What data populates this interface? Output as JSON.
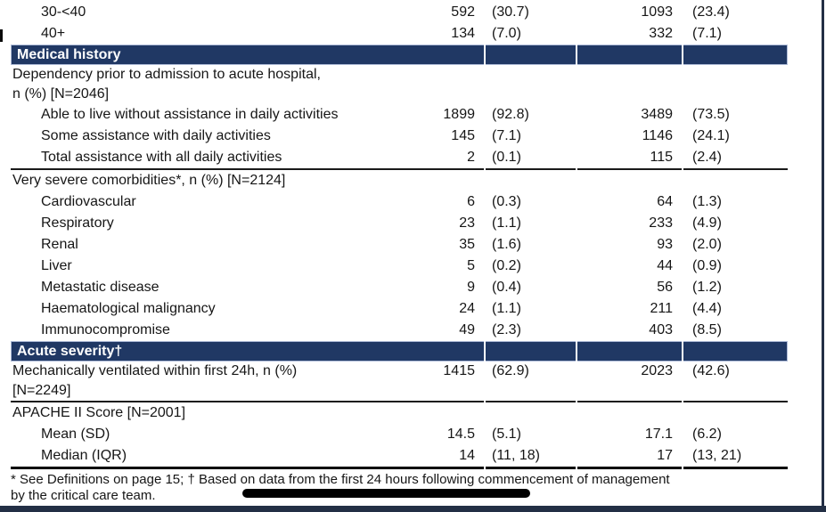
{
  "rows": [
    {
      "type": "item",
      "label": "30-<40",
      "n1": "592",
      "p1": "(30.7)",
      "n2": "1093",
      "p2": "(23.4)"
    },
    {
      "type": "item",
      "label": "40+",
      "n1": "134",
      "p1": "(7.0)",
      "n2": "332",
      "p2": "(7.1)"
    },
    {
      "type": "section",
      "label": "Medical history"
    },
    {
      "type": "group",
      "label": "Dependency prior to admission to acute hospital,",
      "label2": "n (%) [N=2046]"
    },
    {
      "type": "item",
      "label": "Able to live without assistance in daily activities",
      "n1": "1899",
      "p1": "(92.8)",
      "n2": "3489",
      "p2": "(73.5)"
    },
    {
      "type": "item",
      "label": "Some assistance with daily activities",
      "n1": "145",
      "p1": "(7.1)",
      "n2": "1146",
      "p2": "(24.1)"
    },
    {
      "type": "item",
      "label": "Total assistance with all daily activities",
      "n1": "2",
      "p1": "(0.1)",
      "n2": "115",
      "p2": "(2.4)"
    },
    {
      "type": "group",
      "label": "Very severe comorbidities*, n (%) [N=2124]"
    },
    {
      "type": "item",
      "label": "Cardiovascular",
      "n1": "6",
      "p1": "(0.3)",
      "n2": "64",
      "p2": "(1.3)"
    },
    {
      "type": "item",
      "label": "Respiratory",
      "n1": "23",
      "p1": "(1.1)",
      "n2": "233",
      "p2": "(4.9)"
    },
    {
      "type": "item",
      "label": "Renal",
      "n1": "35",
      "p1": "(1.6)",
      "n2": "93",
      "p2": "(2.0)"
    },
    {
      "type": "item",
      "label": "Liver",
      "n1": "5",
      "p1": "(0.2)",
      "n2": "44",
      "p2": "(0.9)"
    },
    {
      "type": "item",
      "label": "Metastatic disease",
      "n1": "9",
      "p1": "(0.4)",
      "n2": "56",
      "p2": "(1.2)"
    },
    {
      "type": "item",
      "label": "Haematological malignancy",
      "n1": "24",
      "p1": "(1.1)",
      "n2": "211",
      "p2": "(4.4)"
    },
    {
      "type": "item",
      "label": "Immunocompromise",
      "n1": "49",
      "p1": "(2.3)",
      "n2": "403",
      "p2": "(8.5)"
    },
    {
      "type": "section",
      "label": "Acute severity†"
    },
    {
      "type": "group",
      "label": "Mechanically ventilated within first 24h, n (%)",
      "label2": "[N=2249]",
      "n1": "1415",
      "p1": "(62.9)",
      "n2": "2023",
      "p2": "(42.6)"
    },
    {
      "type": "group",
      "label": "APACHE II Score [N=2001]"
    },
    {
      "type": "item",
      "label": "Mean (SD)",
      "n1": "14.5",
      "p1": "(5.1)",
      "n2": "17.1",
      "p2": "(6.2)"
    },
    {
      "type": "item",
      "label": "Median (IQR)",
      "n1": "14",
      "p1": "(11, 18)",
      "n2": "17",
      "p2": "(13, 21)"
    }
  ],
  "footnote": {
    "line1": "* See Definitions on page 15; † Based on data from the first 24 hours following commencement of management",
    "line2": "by the critical care team."
  },
  "colors": {
    "section_bar": "#203864",
    "frame": "#232f45",
    "redaction": "#000000"
  }
}
